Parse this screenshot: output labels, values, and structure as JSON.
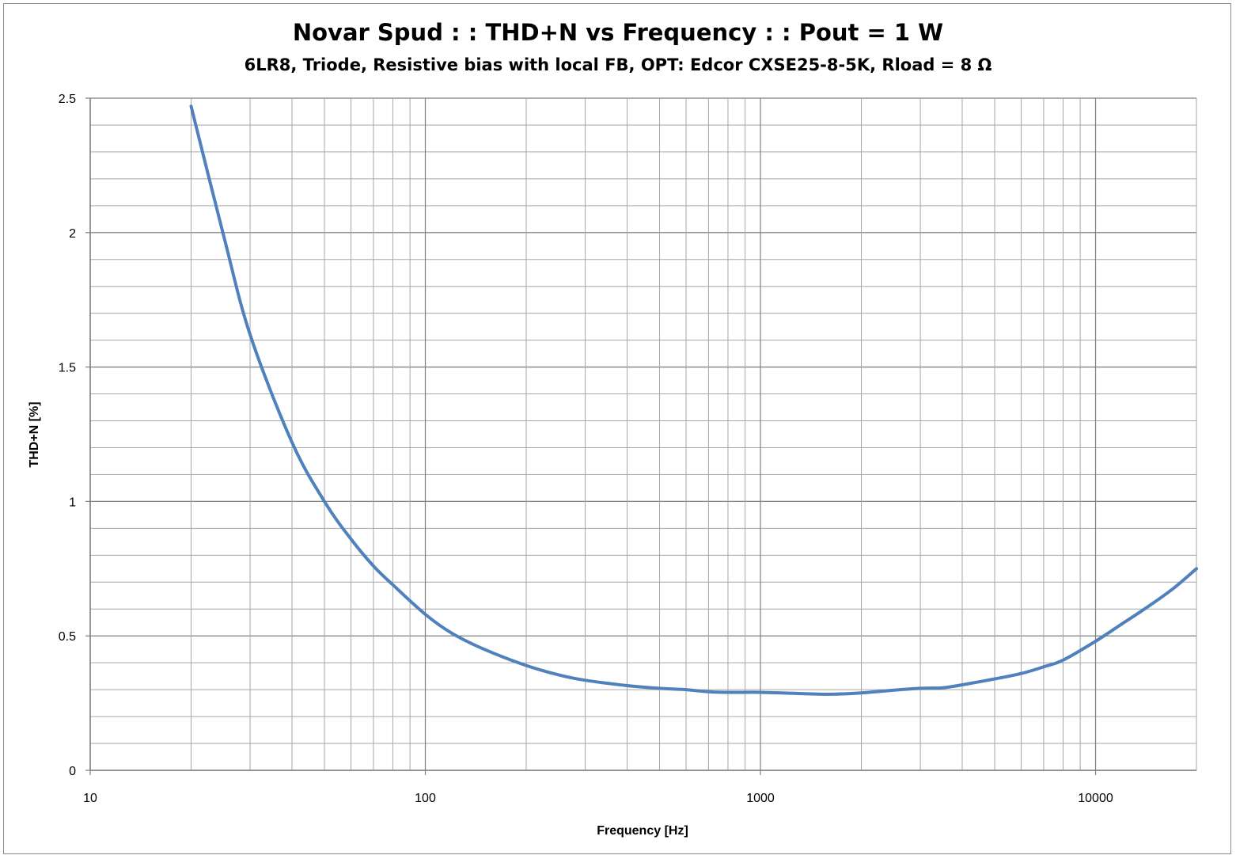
{
  "chart_data": {
    "type": "line",
    "title": "Novar Spud : : THD+N vs Frequency : : Pout = 1 W",
    "subtitle": "6LR8, Triode, Resistive bias with local FB, OPT: Edcor CXSE25-8-5K, Rload = 8 Ω",
    "xlabel": "Frequency [Hz]",
    "ylabel": "THD+N [%]",
    "x_scale": "log",
    "xlim": [
      10,
      20000
    ],
    "ylim": [
      0,
      2.5
    ],
    "x_ticks": [
      "10",
      "100",
      "1000",
      "10000"
    ],
    "y_ticks": [
      "0",
      "0.5",
      "1",
      "1.5",
      "2",
      "2.5"
    ],
    "y_minor_step": 0.1,
    "grid": true,
    "legend": "none",
    "line_color": "#4f81bd",
    "series": [
      {
        "x": [
          20,
          25,
          30,
          40,
          50,
          60,
          70,
          80,
          100,
          120,
          150,
          200,
          250,
          300,
          400,
          500,
          600,
          700,
          800,
          1000,
          1200,
          1600,
          2000,
          2500,
          3000,
          3500,
          4000,
          5000,
          6000,
          7000,
          8000,
          10000,
          12000,
          14000,
          17000,
          20000
        ],
        "y": [
          2.47,
          1.99,
          1.62,
          1.22,
          1.0,
          0.86,
          0.76,
          0.69,
          0.58,
          0.51,
          0.45,
          0.39,
          0.355,
          0.335,
          0.315,
          0.305,
          0.3,
          0.292,
          0.29,
          0.29,
          0.287,
          0.283,
          0.288,
          0.298,
          0.305,
          0.307,
          0.318,
          0.34,
          0.36,
          0.385,
          0.41,
          0.48,
          0.545,
          0.6,
          0.675,
          0.75
        ]
      }
    ]
  }
}
